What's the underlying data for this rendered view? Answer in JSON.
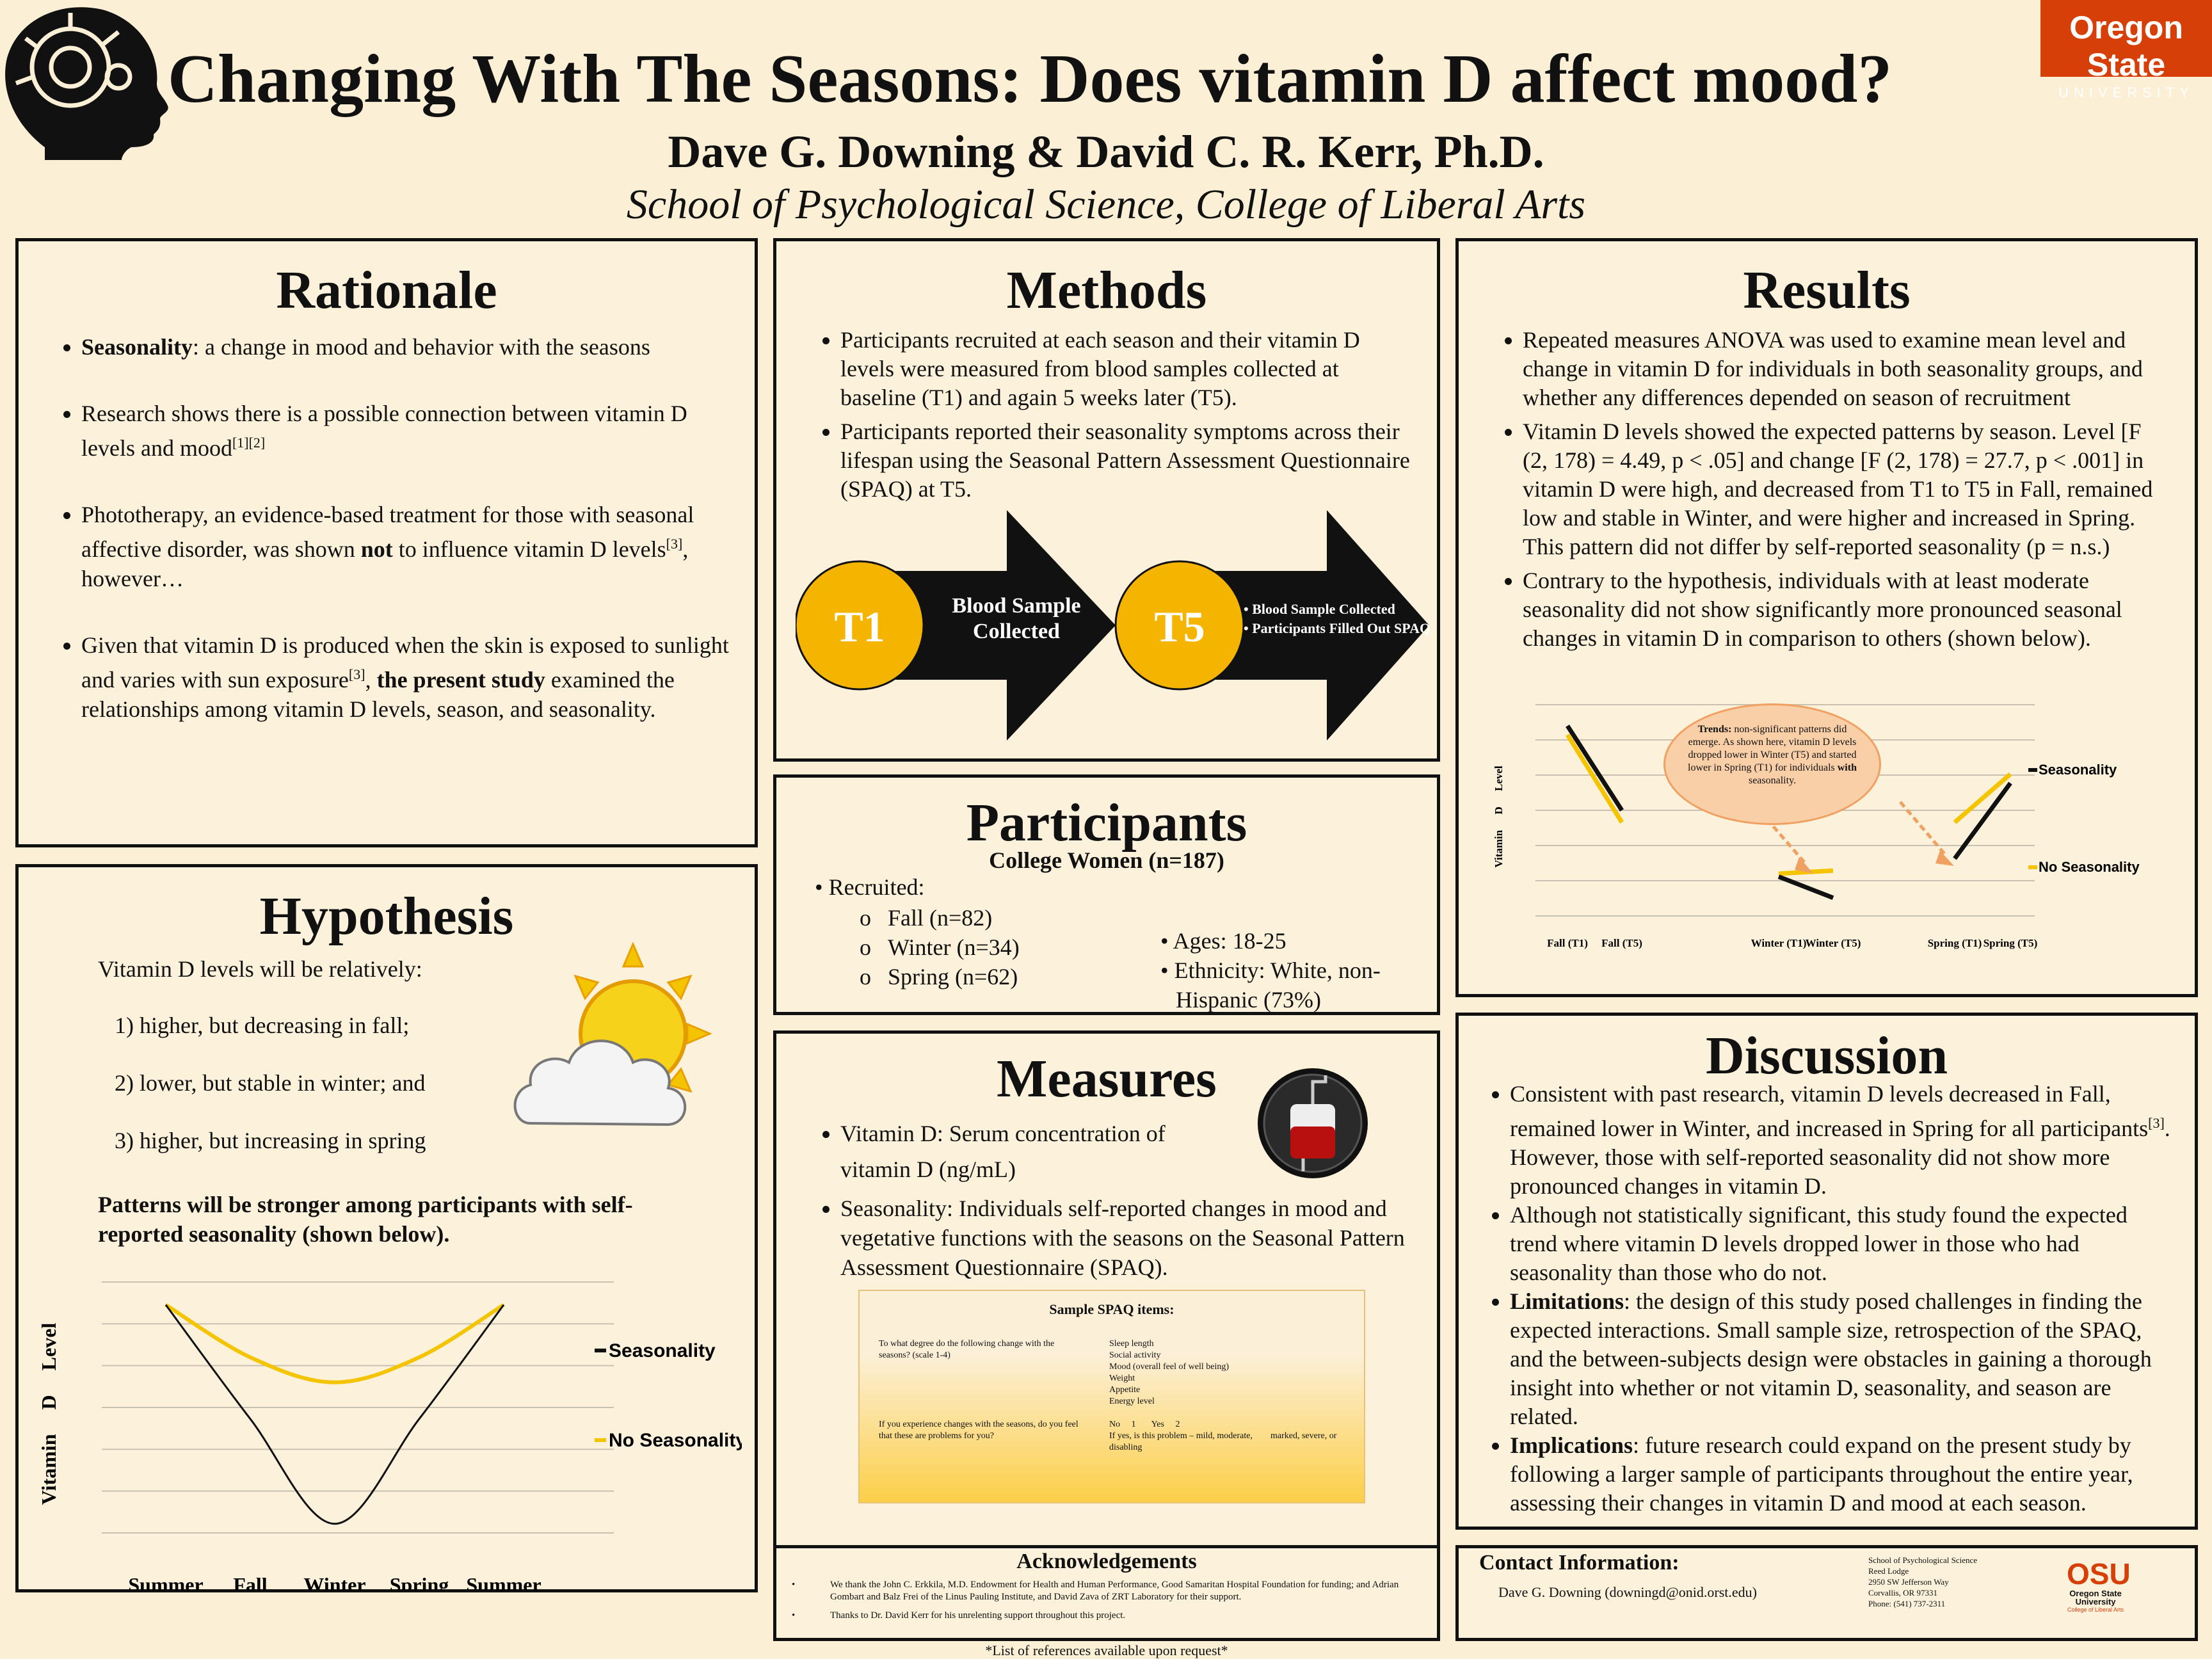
{
  "header": {
    "title": "Changing With The Seasons: Does vitamin D affect mood?",
    "authors": "Dave G. Downing & David C. R. Kerr, Ph.D.",
    "affiliation": "School of Psychological Science, College of Liberal Arts",
    "logo_line1": "Oregon State",
    "logo_line2": "UNIVERSITY",
    "colors": {
      "brand": "#d73f09",
      "accent": "#f5c400"
    }
  },
  "rationale": {
    "title": "Rationale",
    "b1_bold": "Seasonality",
    "b1_rest": ": a change in mood and behavior with the seasons",
    "b2": "Research shows there is a possible connection between vitamin D levels and mood",
    "b2_ref": "[1][2]",
    "b3_a": "Phototherapy, an evidence-based treatment for those with seasonal affective disorder, was shown ",
    "b3_bold": "not",
    "b3_b": " to influence vitamin D levels",
    "b3_ref": "[3]",
    "b3_c": ", however…",
    "b4_a": "Given that vitamin D is produced when the skin is exposed to sunlight and varies with sun exposure",
    "b4_ref": "[3]",
    "b4_b": ", ",
    "b4_bold": "the present study",
    "b4_c": " examined the relationships among vitamin D levels, season, and seasonality."
  },
  "hypothesis": {
    "title": "Hypothesis",
    "intro": "Vitamin D levels will be relatively:",
    "h1": "1) higher, but decreasing in fall;",
    "h2": "2) lower, but stable in winter; and",
    "h3": "3) higher, but increasing in spring",
    "patterns": "Patterns will be stronger among participants with self-reported seasonality (shown below)."
  },
  "methods": {
    "title": "Methods",
    "b1": "Participants recruited at each season and their vitamin D levels were measured from blood samples collected at baseline (T1) and again 5 weeks later (T5).",
    "b2": "Participants reported their seasonality symptoms across their lifespan using the Seasonal Pattern Assessment Questionnaire (SPAQ) at T5.",
    "t1": "T1",
    "t1_text": "Blood Sample Collected",
    "t5": "T5",
    "t5_b1": "Blood Sample Collected",
    "t5_b2": "Participants Filled Out SPAQ Questionnaire"
  },
  "participants": {
    "title": "Participants",
    "subtitle": "College Women (n=187)",
    "recruited": "• Recruited:",
    "fall": "Fall (n=82)",
    "winter": "Winter (n=34)",
    "spring": "Spring (n=62)",
    "ages": "• Ages: 18-25",
    "eth1": "• Ethnicity: White, non-",
    "eth2": "Hispanic (73%)"
  },
  "measures": {
    "title": "Measures",
    "b1a": "Vitamin D: Serum concentration of",
    "b1b": "vitamin D (ng/mL)",
    "b2": "Seasonality: Individuals self-reported changes in mood and vegetative functions with the seasons on the Seasonal Pattern Assessment Questionnaire (SPAQ).",
    "spaq_title": "Sample SPAQ items:",
    "q1": "To what degree do the following change with the seasons? (scale 1-4)",
    "q1_items": [
      "Sleep length",
      "Social activity",
      "Mood (overall feel of well being)",
      "Weight",
      "Appetite",
      "Energy level"
    ],
    "q2": "If you experience changes with the seasons, do you feel that these are problems for you?",
    "q2_ans1": "No     1       Yes     2",
    "q2_ans2": "If yes, is this problem – mild, moderate,        marked, severe, or disabling"
  },
  "results": {
    "title": "Results",
    "b1": "Repeated measures ANOVA was used to examine mean level and change in vitamin D for individuals in both seasonality groups, and whether any differences depended on season of recruitment",
    "b2": "Vitamin D levels showed the expected patterns by season. Level [F (2, 178) = 4.49, p < .05] and change [F (2, 178) = 27.7, p < .001] in vitamin D were high, and decreased from T1 to T5 in Fall, remained low and stable in Winter, and were higher and increased in Spring. This pattern did not differ by self-reported seasonality (p = n.s.)",
    "b3": "Contrary to the hypothesis, individuals with at least moderate seasonality did not show significantly more pronounced seasonal changes in vitamin D in comparison to others (shown below).",
    "trend_bold": "Trends:",
    "trend_a": " non-significant patterns did emerge. As shown here, vitamin D levels dropped lower in Winter (T5) and started lower in Spring (T1) for individuals ",
    "trend_bold2": "with",
    "trend_b": " seasonality."
  },
  "discussion": {
    "title": "Discussion",
    "b1a": "Consistent with past research, vitamin D levels decreased in Fall, remained lower in Winter, and increased in Spring for all participants",
    "b1_ref": "[3]",
    "b1b": ". However, those with self-reported seasonality did not show more pronounced changes in vitamin D.",
    "b2": "Although not statistically significant, this study found the expected trend where vitamin D levels dropped lower in those who had seasonality than those who do not.",
    "b3_bold": "Limitations",
    "b3": ": the design of this study posed challenges in finding the expected interactions. Small sample size, retrospection of the SPAQ, and the between-subjects design were obstacles in gaining a thorough insight into whether or not vitamin D, seasonality, and season are related.",
    "b4_bold": "Implications",
    "b4": ": future research could expand on the present study by following a larger sample of participants throughout the entire year, assessing their changes in vitamin D and mood at each season."
  },
  "ack": {
    "title": "Acknowledgements",
    "b1": "We thank the John C. Erkkila, M.D. Endowment for Health and Human Performance, Good Samaritan Hospital Foundation for funding; and Adrian Gombart and Balz Frei of the Linus Pauling Institute, and David Zava of ZRT Laboratory for their support.",
    "b2": "Thanks to Dr. David Kerr for his unrelenting support throughout this project.",
    "refs": "*List of references available upon request*"
  },
  "contact": {
    "title": "Contact Information:",
    "person": "Dave G. Downing (downingd@onid.orst.edu)",
    "addr": [
      "School of Psychological Science",
      "Reed Lodge",
      "2950 SW Jefferson Way",
      "Corvallis, OR 97331",
      "Phone: (541) 737-2311"
    ],
    "logo_osu": "OSU",
    "logo_sub": "Oregon State",
    "logo_sub2": "University",
    "logo_cla": "College of Liberal Arts"
  },
  "chart_data": [
    {
      "type": "line",
      "title": "",
      "xlabel": "",
      "ylabel": "Vitamin D Level",
      "categories": [
        "Summer",
        "Fall",
        "Winter",
        "Spring",
        "Summer"
      ],
      "series": [
        {
          "name": "Seasonality",
          "color": "#111111",
          "values": [
            10,
            5,
            0.4,
            5,
            10
          ]
        },
        {
          "name": "No Seasonality",
          "color": "#f5c400",
          "values": [
            10,
            7.7,
            6.6,
            7.7,
            10
          ]
        }
      ],
      "ylim": [
        0,
        11
      ],
      "grid": true,
      "legend": "right"
    },
    {
      "type": "line",
      "title": "",
      "xlabel": "",
      "ylabel": "Vitamin D Level",
      "categories": [
        "Fall (T1)",
        "Fall (T5)",
        "Winter (T1)",
        "Winter (T5)",
        "Spring (T1)",
        "Spring (T5)"
      ],
      "series": [
        {
          "name": "Seasonality",
          "color": "#111111",
          "values": [
            6.3,
            3.5,
            1.3,
            0.6,
            1.9,
            4.4
          ]
        },
        {
          "name": "No Seasonality",
          "color": "#f5c400",
          "values": [
            6.0,
            3.1,
            1.4,
            1.5,
            3.1,
            4.7
          ]
        }
      ],
      "ylim": [
        0,
        7
      ],
      "grid": true,
      "legend": "right"
    }
  ]
}
